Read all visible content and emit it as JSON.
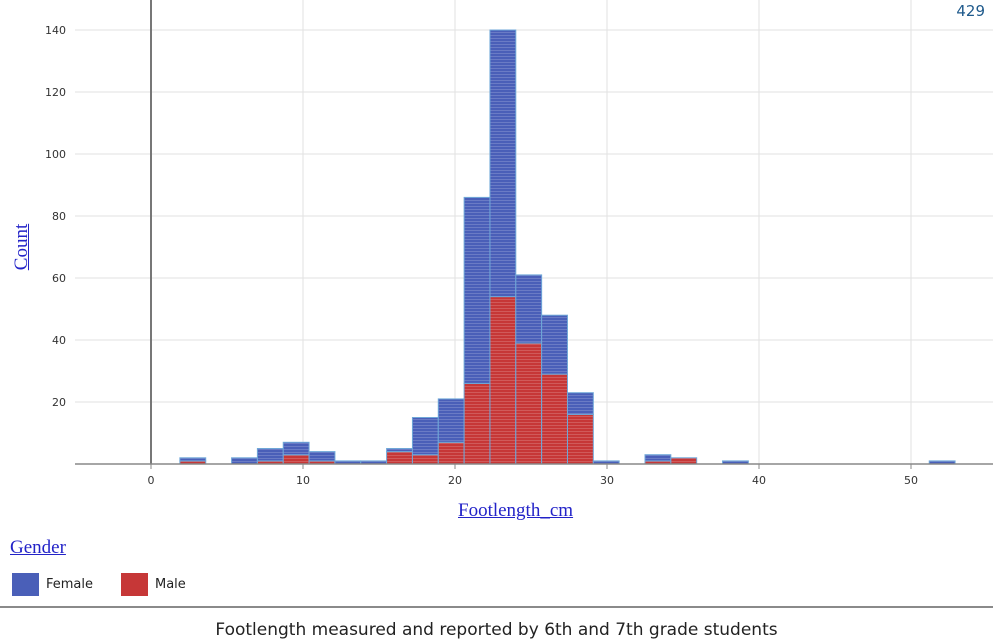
{
  "chart_data": {
    "type": "bar",
    "subtype": "stacked-histogram",
    "xlabel": "Footlength_cm",
    "ylabel": "Count",
    "xlim": [
      -5,
      55
    ],
    "ylim": [
      0,
      145
    ],
    "x_ticks": [
      0,
      10,
      20,
      30,
      40,
      50
    ],
    "y_ticks": [
      20,
      40,
      60,
      80,
      100,
      120,
      140
    ],
    "grid": true,
    "bin_width": 1.7,
    "bin_starts": [
      1.9,
      5.3,
      7.0,
      8.7,
      10.4,
      12.1,
      13.8,
      15.5,
      17.2,
      18.9,
      20.6,
      22.3,
      24.0,
      25.7,
      27.4,
      29.1,
      32.5,
      34.2,
      37.6,
      51.2
    ],
    "series": [
      {
        "name": "Male",
        "values": [
          1,
          0,
          1,
          3,
          1,
          0,
          0,
          4,
          3,
          7,
          26,
          54,
          39,
          29,
          16,
          0,
          1,
          2,
          0,
          0
        ],
        "color": "#c63737"
      },
      {
        "name": "Female",
        "values": [
          1,
          2,
          4,
          4,
          3,
          1,
          1,
          1,
          12,
          14,
          60,
          86,
          22,
          19,
          7,
          1,
          2,
          0,
          1,
          1
        ],
        "color": "#4a5fb8"
      }
    ],
    "legend": {
      "title": "Gender",
      "position": "bottom-left",
      "entries": [
        "Female",
        "Male"
      ]
    }
  },
  "count_readout": "429",
  "caption": "Footlength measured and reported by 6th and 7th grade students",
  "colors": {
    "female": "#4a5fb8",
    "male": "#c63737",
    "bar_stroke": "#6fa7d8",
    "link": "#2323c8"
  }
}
